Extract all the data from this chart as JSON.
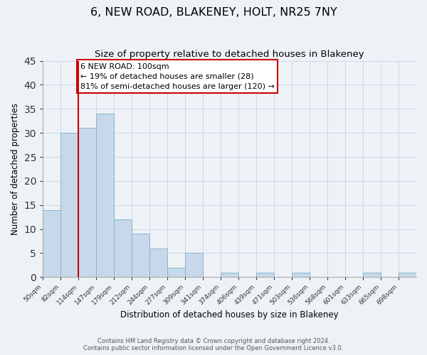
{
  "title": "6, NEW ROAD, BLAKENEY, HOLT, NR25 7NY",
  "subtitle": "Size of property relative to detached houses in Blakeney",
  "xlabel": "Distribution of detached houses by size in Blakeney",
  "ylabel": "Number of detached properties",
  "bin_labels": [
    "50sqm",
    "82sqm",
    "114sqm",
    "147sqm",
    "179sqm",
    "212sqm",
    "244sqm",
    "277sqm",
    "309sqm",
    "341sqm",
    "374sqm",
    "406sqm",
    "439sqm",
    "471sqm",
    "503sqm",
    "536sqm",
    "568sqm",
    "601sqm",
    "633sqm",
    "665sqm",
    "698sqm"
  ],
  "bar_heights": [
    14,
    30,
    31,
    34,
    12,
    9,
    6,
    2,
    5,
    0,
    1,
    0,
    1,
    0,
    1,
    0,
    0,
    0,
    1,
    0,
    1
  ],
  "bar_color": "#c6d8ea",
  "bar_edge_color": "#8ab4cc",
  "grid_color": "#c8d8ea",
  "vline_x": 2,
  "vline_color": "#cc0000",
  "annotation_title": "6 NEW ROAD: 100sqm",
  "annotation_line1": "← 19% of detached houses are smaller (28)",
  "annotation_line2": "81% of semi-detached houses are larger (120) →",
  "annotation_box_color": "#ffffff",
  "annotation_box_edge": "#cc0000",
  "ylim": [
    0,
    45
  ],
  "yticks": [
    0,
    5,
    10,
    15,
    20,
    25,
    30,
    35,
    40,
    45
  ],
  "footer1": "Contains HM Land Registry data © Crown copyright and database right 2024.",
  "footer2": "Contains public sector information licensed under the Open Government Licence v3.0.",
  "bg_color": "#eef2f7",
  "title_fontsize": 11.5,
  "subtitle_fontsize": 9.5
}
